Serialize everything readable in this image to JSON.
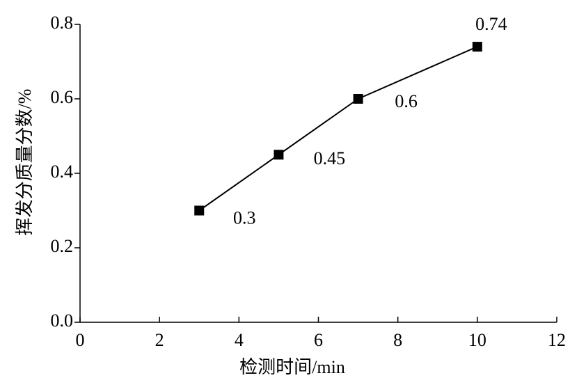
{
  "chart_data": {
    "type": "line",
    "x_label": "检测时间/min",
    "y_label": "挥发分质量分数/%",
    "x": [
      3,
      5,
      7,
      10
    ],
    "series": [
      {
        "color": "#000000",
        "values": [
          0.3,
          0.45,
          0.6,
          0.74
        ]
      }
    ],
    "xlim": [
      0,
      12
    ],
    "xticks": [
      0,
      2,
      4,
      6,
      8,
      10,
      12
    ],
    "ylim": [
      0,
      0.8
    ],
    "yticks": [
      {
        "value": 0,
        "label": "0.0"
      },
      0.2,
      0.4,
      0.6,
      0.8
    ],
    "grid": false,
    "markers": "square",
    "data_labels": true
  }
}
